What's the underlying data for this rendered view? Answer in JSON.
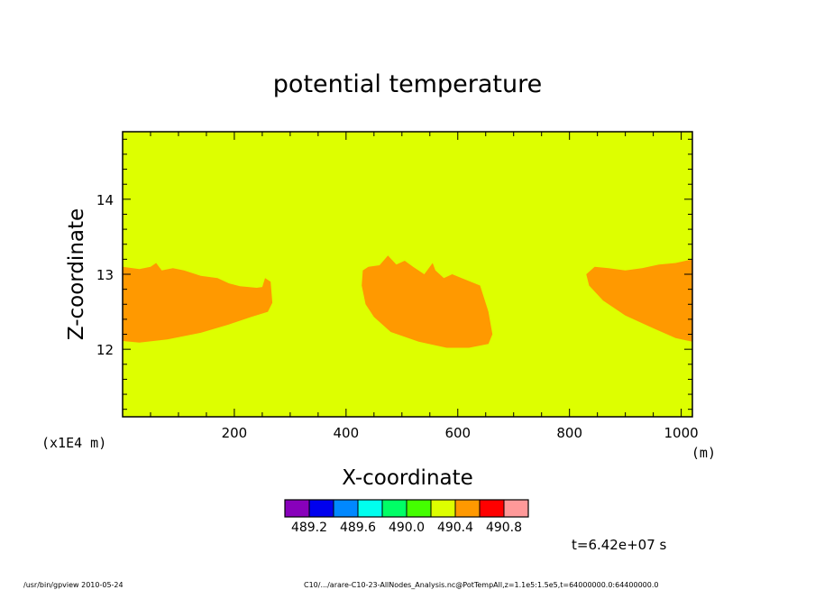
{
  "chart_data": {
    "type": "heatmap",
    "title": "potential temperature",
    "xlabel": "X-coordinate",
    "ylabel": "Z-coordinate",
    "x_unit": "(m)",
    "y_unit": "(x1E4 m)",
    "xlim": [
      0,
      1020
    ],
    "ylim": [
      11.1,
      14.9
    ],
    "x_ticks": [
      200,
      400,
      600,
      800,
      1000
    ],
    "y_ticks": [
      12,
      13,
      14
    ],
    "background_level_color": "#ddff00",
    "colorbar": {
      "colors": [
        "#8800bb",
        "#0000ee",
        "#0088ff",
        "#00ffee",
        "#00ff66",
        "#44ff00",
        "#ddff00",
        "#ff9900",
        "#ff0000",
        "#ff9999"
      ],
      "labels": [
        "489.2",
        "489.6",
        "490.0",
        "490.4",
        "490.8"
      ]
    },
    "regions": [
      {
        "name": "",
        "color": "#ff9900",
        "points": [
          [
            0,
            13.1
          ],
          [
            30,
            13.07
          ],
          [
            50,
            13.1
          ],
          [
            60,
            13.15
          ],
          [
            70,
            13.05
          ],
          [
            90,
            13.08
          ],
          [
            110,
            13.05
          ],
          [
            140,
            12.98
          ],
          [
            170,
            12.95
          ],
          [
            190,
            12.88
          ],
          [
            210,
            12.84
          ],
          [
            240,
            12.82
          ],
          [
            250,
            12.83
          ],
          [
            255,
            12.95
          ],
          [
            265,
            12.9
          ],
          [
            268,
            12.62
          ],
          [
            260,
            12.5
          ],
          [
            230,
            12.43
          ],
          [
            190,
            12.33
          ],
          [
            140,
            12.22
          ],
          [
            80,
            12.13
          ],
          [
            30,
            12.09
          ],
          [
            0,
            12.11
          ]
        ]
      },
      {
        "name": "",
        "color": "#ff9900",
        "points": [
          [
            430,
            13.05
          ],
          [
            440,
            13.1
          ],
          [
            460,
            13.12
          ],
          [
            475,
            13.25
          ],
          [
            490,
            13.13
          ],
          [
            505,
            13.18
          ],
          [
            520,
            13.1
          ],
          [
            540,
            13.0
          ],
          [
            555,
            13.15
          ],
          [
            560,
            13.05
          ],
          [
            575,
            12.95
          ],
          [
            590,
            13.0
          ],
          [
            640,
            12.85
          ],
          [
            655,
            12.5
          ],
          [
            662,
            12.2
          ],
          [
            655,
            12.07
          ],
          [
            620,
            12.02
          ],
          [
            580,
            12.02
          ],
          [
            530,
            12.1
          ],
          [
            480,
            12.23
          ],
          [
            450,
            12.43
          ],
          [
            435,
            12.6
          ],
          [
            428,
            12.85
          ]
        ]
      },
      {
        "name": "",
        "color": "#ff9900",
        "points": [
          [
            830,
            13.0
          ],
          [
            845,
            13.1
          ],
          [
            870,
            13.08
          ],
          [
            900,
            13.05
          ],
          [
            930,
            13.08
          ],
          [
            960,
            13.13
          ],
          [
            990,
            13.15
          ],
          [
            1020,
            13.2
          ],
          [
            1020,
            12.1
          ],
          [
            990,
            12.15
          ],
          [
            950,
            12.28
          ],
          [
            900,
            12.45
          ],
          [
            860,
            12.65
          ],
          [
            835,
            12.85
          ]
        ]
      }
    ]
  },
  "annotations": {
    "time": "t=6.42e+07 s",
    "footer_left": "/usr/bin/gpview   2010-05-24",
    "footer_right": "C10/.../arare-C10-23-AllNodes_Analysis.nc@PotTempAll,z=1.1e5:1.5e5,t=64000000.0:64400000.0"
  }
}
